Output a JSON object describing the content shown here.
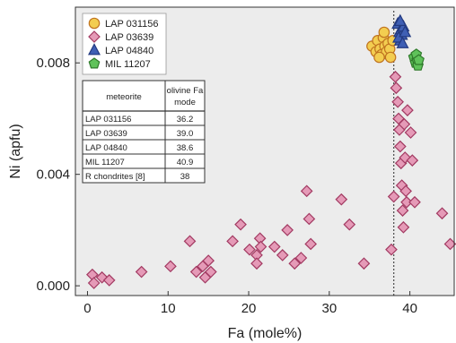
{
  "chart_data": {
    "type": "scatter",
    "xlabel": "Fa (mole%)",
    "ylabel": "Ni (apfu)",
    "xlim": [
      -1.5,
      45.5
    ],
    "ylim": [
      -0.00035,
      0.01
    ],
    "x_ticks": [
      0,
      10,
      20,
      30,
      40
    ],
    "y_ticks": [
      {
        "value": 0.0,
        "label": "0.000"
      },
      {
        "value": 0.004,
        "label": "0.004"
      },
      {
        "value": 0.008,
        "label": "0.008"
      }
    ],
    "background": "#ececec",
    "grid": false,
    "reference_line": {
      "x": 38.0,
      "style": "dotted"
    },
    "series": [
      {
        "name": "LAP 03639",
        "marker": "diamond",
        "color": "#e59ab7",
        "edge": "#a23a62",
        "points": [
          [
            0.6,
            0.0004
          ],
          [
            0.8,
            0.0001
          ],
          [
            1.8,
            0.0003
          ],
          [
            2.7,
            0.0002
          ],
          [
            6.7,
            0.0005
          ],
          [
            10.3,
            0.0007
          ],
          [
            12.7,
            0.0016
          ],
          [
            13.5,
            0.0005
          ],
          [
            14.3,
            0.0007
          ],
          [
            14.6,
            0.0003
          ],
          [
            15.0,
            0.0009
          ],
          [
            15.3,
            0.0005
          ],
          [
            18.0,
            0.0016
          ],
          [
            19.0,
            0.0022
          ],
          [
            20.1,
            0.0013
          ],
          [
            21.0,
            0.0011
          ],
          [
            21.0,
            0.0008
          ],
          [
            21.4,
            0.0017
          ],
          [
            21.5,
            0.0014
          ],
          [
            23.2,
            0.0014
          ],
          [
            24.2,
            0.0011
          ],
          [
            24.8,
            0.002
          ],
          [
            25.7,
            0.0008
          ],
          [
            26.5,
            0.001
          ],
          [
            27.2,
            0.0034
          ],
          [
            27.5,
            0.0024
          ],
          [
            27.7,
            0.0015
          ],
          [
            31.5,
            0.0031
          ],
          [
            32.5,
            0.0022
          ],
          [
            34.3,
            0.0008
          ],
          [
            37.7,
            0.0013
          ],
          [
            38.0,
            0.0032
          ],
          [
            38.2,
            0.0075
          ],
          [
            38.3,
            0.0071
          ],
          [
            38.5,
            0.0066
          ],
          [
            38.6,
            0.006
          ],
          [
            38.7,
            0.0056
          ],
          [
            38.8,
            0.005
          ],
          [
            38.9,
            0.0044
          ],
          [
            39.0,
            0.0036
          ],
          [
            39.1,
            0.0027
          ],
          [
            39.2,
            0.0021
          ],
          [
            39.3,
            0.0058
          ],
          [
            39.4,
            0.0046
          ],
          [
            39.5,
            0.0034
          ],
          [
            39.6,
            0.003
          ],
          [
            39.7,
            0.0063
          ],
          [
            40.1,
            0.0055
          ],
          [
            40.3,
            0.0045
          ],
          [
            40.6,
            0.003
          ],
          [
            44.0,
            0.0026
          ],
          [
            45.0,
            0.0015
          ]
        ]
      },
      {
        "name": "LAP 031156",
        "marker": "circle",
        "color": "#f3cd50",
        "edge": "#c07420",
        "points": [
          [
            35.3,
            0.0086
          ],
          [
            35.8,
            0.0084
          ],
          [
            36.0,
            0.0088
          ],
          [
            36.3,
            0.0085
          ],
          [
            36.5,
            0.0083
          ],
          [
            36.7,
            0.0089
          ],
          [
            36.9,
            0.0086
          ],
          [
            37.1,
            0.0084
          ],
          [
            37.3,
            0.0087
          ],
          [
            37.5,
            0.0085
          ],
          [
            37.9,
            0.0088
          ],
          [
            36.8,
            0.0091
          ],
          [
            36.2,
            0.0082
          ],
          [
            37.6,
            0.0082
          ]
        ]
      },
      {
        "name": "LAP 04840",
        "marker": "triangle",
        "color": "#3f5fb4",
        "edge": "#233a80",
        "points": [
          [
            38.5,
            0.0094
          ],
          [
            38.7,
            0.0091
          ],
          [
            38.9,
            0.0092
          ],
          [
            38.8,
            0.0088
          ],
          [
            39.0,
            0.009
          ],
          [
            39.2,
            0.0093
          ],
          [
            38.6,
            0.0089
          ],
          [
            39.4,
            0.0091
          ],
          [
            39.1,
            0.0087
          ],
          [
            38.8,
            0.0095
          ]
        ]
      },
      {
        "name": "MIL 11207",
        "marker": "pentagon",
        "color": "#5fc25a",
        "edge": "#2f7a2b",
        "points": [
          [
            40.5,
            0.0082
          ],
          [
            40.7,
            0.008
          ],
          [
            40.9,
            0.0081
          ],
          [
            41.0,
            0.0079
          ],
          [
            40.8,
            0.0083
          ],
          [
            41.1,
            0.0081
          ]
        ]
      }
    ],
    "legend": {
      "placement": "top-left",
      "entries": [
        {
          "name": "LAP 031156",
          "marker": "circle"
        },
        {
          "name": "LAP 03639",
          "marker": "diamond"
        },
        {
          "name": "LAP 04840",
          "marker": "triangle"
        },
        {
          "name": "MIL 11207",
          "marker": "pentagon"
        }
      ]
    },
    "table": {
      "headers": [
        "meteorite",
        "olivine Fa mode"
      ],
      "rows": [
        [
          "LAP 031156",
          "36.2"
        ],
        [
          "LAP 03639",
          "39.0"
        ],
        [
          "LAP 04840",
          "38.6"
        ],
        [
          "MIL 11207",
          "40.9"
        ],
        [
          "R chondrites [8]",
          "38"
        ]
      ]
    }
  }
}
